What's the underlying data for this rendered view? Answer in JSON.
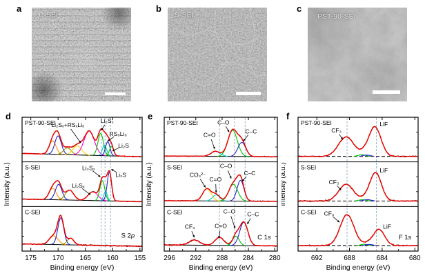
{
  "figure": {
    "panels_top": [
      {
        "letter": "a",
        "label": "C-SEI",
        "scale_bar": true
      },
      {
        "letter": "b",
        "label": "S-SEI",
        "scale_bar": true
      },
      {
        "letter": "c",
        "label": "PST-90-SEI",
        "scale_bar": true
      }
    ],
    "panel_letters_bottom": {
      "d": "d",
      "e": "e",
      "f": "f"
    }
  },
  "chart_data": {
    "type": "line",
    "description": "Stacked XPS spectra (fit components, red envelope, black raw data) for three SEI samples",
    "colors": {
      "envelope": "#e60400",
      "raw": "#161616",
      "guide": "#8fa8c4",
      "orange": "#ff9400",
      "blue": "#2222cc",
      "olive": "#8f8f00",
      "yellow": "#ffd800",
      "magenta": "#ff00e0",
      "green": "#00c400",
      "cyan": "#00cccc"
    },
    "panels": [
      {
        "letter": "d",
        "level": "S 2p",
        "level_pos": [
          157.2,
          0.3
        ],
        "xlabel": "Binding energy (eV)",
        "ylabel": "Intensity (a.u.)",
        "range": [
          176.6,
          154.6
        ],
        "ticks": [
          175,
          170,
          165,
          160,
          155
        ],
        "guides": [
          162.1,
          161.4,
          160.4
        ],
        "dashed_base": false,
        "rows": [
          {
            "sample": "PST-90-SEI",
            "base": [
              0.13,
              0.03
            ],
            "noise": 0.016,
            "comps": [
              [
                "orange",
                171.0,
                0.4,
                0.62
              ],
              [
                "blue",
                170.0,
                0.55,
                0.6
              ],
              [
                "olive",
                168.3,
                0.2,
                0.7
              ],
              [
                "yellow",
                166.5,
                0.27,
                0.8
              ],
              [
                "magenta",
                164.3,
                0.72,
                0.95
              ],
              [
                "green",
                162.2,
                0.66,
                0.5
              ],
              [
                "cyan",
                161.5,
                0.32,
                0.38
              ],
              [
                "blue",
                160.9,
                0.42,
                0.4
              ],
              [
                "green",
                160.2,
                0.28,
                0.38
              ]
            ],
            "ann": [
              {
                "t": "Li₂Sₓ+RSₓLi₆",
                "x": 168.2,
                "y": 0.78,
                "ax": 165.8,
                "ay": 0.42
              },
              {
                "t": "Li₂S₂",
                "x": 161.0,
                "y": 0.88,
                "ax": 162.1,
                "ay": 0.7
              },
              {
                "t": "RS₆Li₆",
                "x": 159.0,
                "y": 0.58,
                "ax": 161.0,
                "ay": 0.46
              },
              {
                "t": "Li₂S",
                "x": 158.0,
                "y": 0.32,
                "ax": 160.1,
                "ay": 0.24
              }
            ]
          },
          {
            "sample": "S-SEI",
            "base": [
              0.1,
              0.02
            ],
            "noise": 0.016,
            "comps": [
              [
                "orange",
                171.0,
                0.34,
                0.65
              ],
              [
                "blue",
                169.9,
                0.46,
                0.6
              ],
              [
                "olive",
                167.9,
                0.3,
                0.75
              ],
              [
                "magenta",
                163.6,
                0.26,
                0.9
              ],
              [
                "green",
                161.9,
                0.6,
                0.45
              ],
              [
                "cyan",
                161.3,
                0.28,
                0.33
              ],
              [
                "blue",
                160.6,
                0.86,
                0.4
              ]
            ],
            "ann": [
              {
                "t": "Li₂S₂",
                "x": 164.4,
                "y": 0.82,
                "ax": 162.2,
                "ay": 0.66
              },
              {
                "t": "Li₂Sₓ",
                "x": 166.3,
                "y": 0.42,
                "ax": 164.0,
                "ay": 0.26
              },
              {
                "t": "Li₂S",
                "x": 158.5,
                "y": 0.66,
                "ax": 160.3,
                "ay": 0.84
              }
            ]
          },
          {
            "sample": "C-SEI",
            "base": [
              0.09,
              0.02
            ],
            "noise": 0.024,
            "comps": [
              [
                "orange",
                170.8,
                0.26,
                0.8
              ],
              [
                "blue",
                169.5,
                0.8,
                0.55
              ],
              [
                "olive",
                167.7,
                0.2,
                0.6
              ]
            ],
            "ann": []
          }
        ]
      },
      {
        "letter": "e",
        "level": "C 1s",
        "level_pos": [
          281.6,
          0.26
        ],
        "xlabel": "Binding energy (eV)",
        "ylabel": "Intensity (a.u.)",
        "range": [
          296.8,
          279.6
        ],
        "ticks": [
          296,
          292,
          288,
          284,
          280
        ],
        "guides": [
          288.4,
          286.1,
          284.5
        ],
        "dashed_base": false,
        "rows": [
          {
            "sample": "PST-90-SEI",
            "base": [
              0.05,
              0.03
            ],
            "noise": 0.016,
            "comps": [
              [
                "cyan",
                289.0,
                0.15,
                0.7
              ],
              [
                "green",
                286.4,
                0.78,
                0.72
              ],
              [
                "blue",
                285.0,
                0.42,
                0.6
              ]
            ],
            "ann": [
              {
                "t": "C=O",
                "x": 289.9,
                "y": 0.56,
                "ax": 289.1,
                "ay": 0.28
              },
              {
                "t": "C–O",
                "x": 287.8,
                "y": 0.84,
                "ax": 286.9,
                "ay": 0.66
              },
              {
                "t": "C–C",
                "x": 283.6,
                "y": 0.64,
                "ax": 284.8,
                "ay": 0.46
              }
            ]
          },
          {
            "sample": "S-SEI",
            "base": [
              0.05,
              0.03
            ],
            "noise": 0.016,
            "comps": [
              [
                "yellow",
                290.3,
                0.36,
                0.65
              ],
              [
                "cyan",
                288.9,
                0.18,
                0.55
              ],
              [
                "green",
                286.3,
                0.5,
                0.68
              ],
              [
                "blue",
                285.2,
                0.62,
                0.52
              ]
            ],
            "ann": [
              {
                "t": "CO₃²⁻",
                "x": 291.7,
                "y": 0.66,
                "ax": 290.5,
                "ay": 0.42
              },
              {
                "t": "C=O",
                "x": 289.0,
                "y": 0.56,
                "ax": 288.9,
                "ay": 0.3
              },
              {
                "t": "C–O",
                "x": 287.4,
                "y": 0.86,
                "ax": 286.6,
                "ay": 0.62
              },
              {
                "t": "C–C",
                "x": 283.8,
                "y": 0.7,
                "ax": 285.0,
                "ay": 0.56
              }
            ]
          },
          {
            "sample": "C-SEI",
            "base": [
              0.06,
              0.03
            ],
            "noise": 0.022,
            "comps": [
              [
                "none",
                292.2,
                0.16,
                0.8
              ],
              [
                "cyan",
                288.4,
                0.24,
                0.68
              ],
              [
                "green",
                285.9,
                0.28,
                0.5
              ],
              [
                "blue",
                284.7,
                0.7,
                0.62
              ]
            ],
            "ann": [
              {
                "t": "CF₃",
                "x": 292.9,
                "y": 0.5,
                "ax": 292.2,
                "ay": 0.3
              },
              {
                "t": "C=O",
                "x": 288.2,
                "y": 0.52,
                "ax": 288.5,
                "ay": 0.28
              },
              {
                "t": "C–O",
                "x": 286.9,
                "y": 0.84,
                "ax": 286.0,
                "ay": 0.5
              },
              {
                "t": "C–C",
                "x": 283.3,
                "y": 0.78,
                "ax": 284.2,
                "ay": 0.6
              }
            ]
          }
        ]
      },
      {
        "letter": "f",
        "level": "F 1s",
        "level_pos": [
          681.2,
          0.26
        ],
        "xlabel": "Binding energy (eV)",
        "ylabel": "Intensity (a.u.)",
        "range": [
          694.3,
          679.6
        ],
        "ticks": [
          692,
          688,
          684,
          680
        ],
        "guides": [
          688.3,
          684.7
        ],
        "dashed_base": true,
        "rows": [
          {
            "sample": "PST-90-SEI",
            "base": [
              0.04,
              0.04
            ],
            "noise": 0.022,
            "comps": [
              [
                "none",
                688.4,
                0.58,
                0.95
              ],
              [
                "none",
                684.9,
                0.88,
                0.75
              ],
              [
                "green",
                686.5,
                0.05,
                0.45
              ],
              [
                "blue",
                685.9,
                0.04,
                0.45
              ]
            ],
            "ann": [
              {
                "t": "CF₃",
                "x": 689.6,
                "y": 0.66,
                "ax": 688.8,
                "ay": 0.5
              },
              {
                "t": "LiF",
                "x": 683.8,
                "y": 0.8
              }
            ]
          },
          {
            "sample": "S-SEI",
            "base": [
              0.04,
              0.04
            ],
            "noise": 0.022,
            "comps": [
              [
                "none",
                688.4,
                0.5,
                0.9
              ],
              [
                "none",
                684.8,
                0.85,
                0.7
              ],
              [
                "green",
                686.4,
                0.04,
                0.45
              ],
              [
                "blue",
                685.8,
                0.04,
                0.45
              ]
            ],
            "ann": [
              {
                "t": "CF₃",
                "x": 689.9,
                "y": 0.5,
                "ax": 689.0,
                "ay": 0.36
              },
              {
                "t": "LiF",
                "x": 683.8,
                "y": 0.76
              }
            ]
          },
          {
            "sample": "C-SEI",
            "base": [
              0.04,
              0.04
            ],
            "noise": 0.022,
            "comps": [
              [
                "none",
                688.3,
                0.92,
                0.85
              ],
              [
                "none",
                684.4,
                0.48,
                0.7
              ],
              [
                "green",
                686.2,
                0.04,
                0.45
              ],
              [
                "blue",
                685.6,
                0.035,
                0.45
              ]
            ],
            "ann": [
              {
                "t": "CF₃",
                "x": 690.5,
                "y": 0.8,
                "ax": 689.2,
                "ay": 0.64
              },
              {
                "t": "LiF",
                "x": 683.4,
                "y": 0.5
              }
            ]
          }
        ]
      }
    ]
  }
}
